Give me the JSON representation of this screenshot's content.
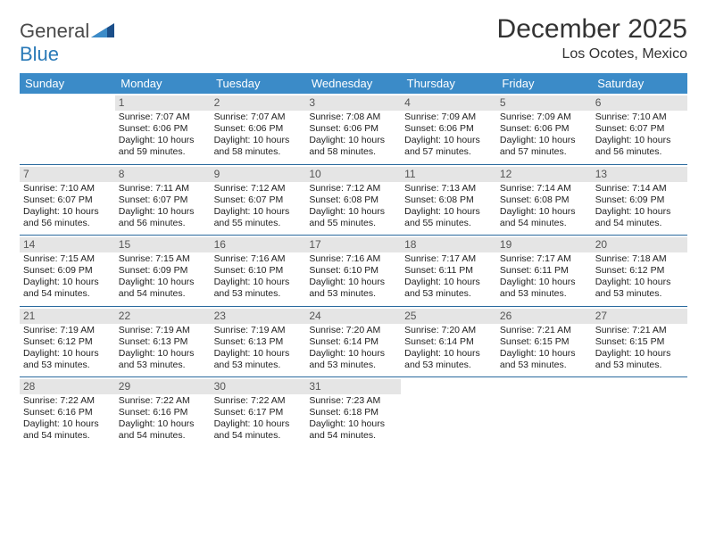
{
  "logo": {
    "part1": "General",
    "part2": "Blue"
  },
  "title": "December 2025",
  "subtitle": "Los Ocotes, Mexico",
  "colors": {
    "header_bg": "#3b8bc8",
    "header_text": "#ffffff",
    "row_border": "#2a6a9e",
    "daynum_bg": "#e5e5e5",
    "daynum_text": "#555555",
    "logo_gray": "#4a4a4a",
    "logo_blue": "#2a7ab8",
    "page_bg": "#ffffff"
  },
  "typography": {
    "title_size_pt": 22,
    "subtitle_size_pt": 12,
    "header_size_pt": 10,
    "cell_size_pt": 8,
    "daynum_size_pt": 9
  },
  "weekdays": [
    "Sunday",
    "Monday",
    "Tuesday",
    "Wednesday",
    "Thursday",
    "Friday",
    "Saturday"
  ],
  "weeks": [
    [
      {
        "n": "",
        "l1": "",
        "l2": "",
        "l3": "",
        "l4": ""
      },
      {
        "n": "1",
        "l1": "Sunrise: 7:07 AM",
        "l2": "Sunset: 6:06 PM",
        "l3": "Daylight: 10 hours",
        "l4": "and 59 minutes."
      },
      {
        "n": "2",
        "l1": "Sunrise: 7:07 AM",
        "l2": "Sunset: 6:06 PM",
        "l3": "Daylight: 10 hours",
        "l4": "and 58 minutes."
      },
      {
        "n": "3",
        "l1": "Sunrise: 7:08 AM",
        "l2": "Sunset: 6:06 PM",
        "l3": "Daylight: 10 hours",
        "l4": "and 58 minutes."
      },
      {
        "n": "4",
        "l1": "Sunrise: 7:09 AM",
        "l2": "Sunset: 6:06 PM",
        "l3": "Daylight: 10 hours",
        "l4": "and 57 minutes."
      },
      {
        "n": "5",
        "l1": "Sunrise: 7:09 AM",
        "l2": "Sunset: 6:06 PM",
        "l3": "Daylight: 10 hours",
        "l4": "and 57 minutes."
      },
      {
        "n": "6",
        "l1": "Sunrise: 7:10 AM",
        "l2": "Sunset: 6:07 PM",
        "l3": "Daylight: 10 hours",
        "l4": "and 56 minutes."
      }
    ],
    [
      {
        "n": "7",
        "l1": "Sunrise: 7:10 AM",
        "l2": "Sunset: 6:07 PM",
        "l3": "Daylight: 10 hours",
        "l4": "and 56 minutes."
      },
      {
        "n": "8",
        "l1": "Sunrise: 7:11 AM",
        "l2": "Sunset: 6:07 PM",
        "l3": "Daylight: 10 hours",
        "l4": "and 56 minutes."
      },
      {
        "n": "9",
        "l1": "Sunrise: 7:12 AM",
        "l2": "Sunset: 6:07 PM",
        "l3": "Daylight: 10 hours",
        "l4": "and 55 minutes."
      },
      {
        "n": "10",
        "l1": "Sunrise: 7:12 AM",
        "l2": "Sunset: 6:08 PM",
        "l3": "Daylight: 10 hours",
        "l4": "and 55 minutes."
      },
      {
        "n": "11",
        "l1": "Sunrise: 7:13 AM",
        "l2": "Sunset: 6:08 PM",
        "l3": "Daylight: 10 hours",
        "l4": "and 55 minutes."
      },
      {
        "n": "12",
        "l1": "Sunrise: 7:14 AM",
        "l2": "Sunset: 6:08 PM",
        "l3": "Daylight: 10 hours",
        "l4": "and 54 minutes."
      },
      {
        "n": "13",
        "l1": "Sunrise: 7:14 AM",
        "l2": "Sunset: 6:09 PM",
        "l3": "Daylight: 10 hours",
        "l4": "and 54 minutes."
      }
    ],
    [
      {
        "n": "14",
        "l1": "Sunrise: 7:15 AM",
        "l2": "Sunset: 6:09 PM",
        "l3": "Daylight: 10 hours",
        "l4": "and 54 minutes."
      },
      {
        "n": "15",
        "l1": "Sunrise: 7:15 AM",
        "l2": "Sunset: 6:09 PM",
        "l3": "Daylight: 10 hours",
        "l4": "and 54 minutes."
      },
      {
        "n": "16",
        "l1": "Sunrise: 7:16 AM",
        "l2": "Sunset: 6:10 PM",
        "l3": "Daylight: 10 hours",
        "l4": "and 53 minutes."
      },
      {
        "n": "17",
        "l1": "Sunrise: 7:16 AM",
        "l2": "Sunset: 6:10 PM",
        "l3": "Daylight: 10 hours",
        "l4": "and 53 minutes."
      },
      {
        "n": "18",
        "l1": "Sunrise: 7:17 AM",
        "l2": "Sunset: 6:11 PM",
        "l3": "Daylight: 10 hours",
        "l4": "and 53 minutes."
      },
      {
        "n": "19",
        "l1": "Sunrise: 7:17 AM",
        "l2": "Sunset: 6:11 PM",
        "l3": "Daylight: 10 hours",
        "l4": "and 53 minutes."
      },
      {
        "n": "20",
        "l1": "Sunrise: 7:18 AM",
        "l2": "Sunset: 6:12 PM",
        "l3": "Daylight: 10 hours",
        "l4": "and 53 minutes."
      }
    ],
    [
      {
        "n": "21",
        "l1": "Sunrise: 7:19 AM",
        "l2": "Sunset: 6:12 PM",
        "l3": "Daylight: 10 hours",
        "l4": "and 53 minutes."
      },
      {
        "n": "22",
        "l1": "Sunrise: 7:19 AM",
        "l2": "Sunset: 6:13 PM",
        "l3": "Daylight: 10 hours",
        "l4": "and 53 minutes."
      },
      {
        "n": "23",
        "l1": "Sunrise: 7:19 AM",
        "l2": "Sunset: 6:13 PM",
        "l3": "Daylight: 10 hours",
        "l4": "and 53 minutes."
      },
      {
        "n": "24",
        "l1": "Sunrise: 7:20 AM",
        "l2": "Sunset: 6:14 PM",
        "l3": "Daylight: 10 hours",
        "l4": "and 53 minutes."
      },
      {
        "n": "25",
        "l1": "Sunrise: 7:20 AM",
        "l2": "Sunset: 6:14 PM",
        "l3": "Daylight: 10 hours",
        "l4": "and 53 minutes."
      },
      {
        "n": "26",
        "l1": "Sunrise: 7:21 AM",
        "l2": "Sunset: 6:15 PM",
        "l3": "Daylight: 10 hours",
        "l4": "and 53 minutes."
      },
      {
        "n": "27",
        "l1": "Sunrise: 7:21 AM",
        "l2": "Sunset: 6:15 PM",
        "l3": "Daylight: 10 hours",
        "l4": "and 53 minutes."
      }
    ],
    [
      {
        "n": "28",
        "l1": "Sunrise: 7:22 AM",
        "l2": "Sunset: 6:16 PM",
        "l3": "Daylight: 10 hours",
        "l4": "and 54 minutes."
      },
      {
        "n": "29",
        "l1": "Sunrise: 7:22 AM",
        "l2": "Sunset: 6:16 PM",
        "l3": "Daylight: 10 hours",
        "l4": "and 54 minutes."
      },
      {
        "n": "30",
        "l1": "Sunrise: 7:22 AM",
        "l2": "Sunset: 6:17 PM",
        "l3": "Daylight: 10 hours",
        "l4": "and 54 minutes."
      },
      {
        "n": "31",
        "l1": "Sunrise: 7:23 AM",
        "l2": "Sunset: 6:18 PM",
        "l3": "Daylight: 10 hours",
        "l4": "and 54 minutes."
      },
      {
        "n": "",
        "l1": "",
        "l2": "",
        "l3": "",
        "l4": ""
      },
      {
        "n": "",
        "l1": "",
        "l2": "",
        "l3": "",
        "l4": ""
      },
      {
        "n": "",
        "l1": "",
        "l2": "",
        "l3": "",
        "l4": ""
      }
    ]
  ]
}
